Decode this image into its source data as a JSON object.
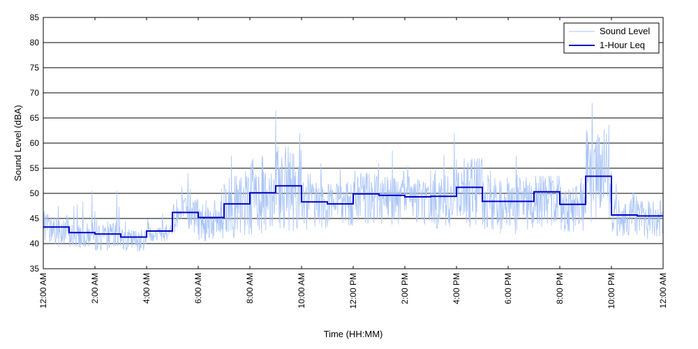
{
  "chart_data": {
    "type": "line",
    "xlabel": "Time (HH:MM)",
    "ylabel": "Sound Level (dBA)",
    "ylim": [
      35,
      85
    ],
    "xlim_hours": [
      0,
      24
    ],
    "y_ticks": [
      35,
      40,
      45,
      50,
      55,
      60,
      65,
      70,
      75,
      80,
      85
    ],
    "x_tick_hours": [
      0,
      2,
      4,
      6,
      8,
      10,
      12,
      14,
      16,
      18,
      20,
      22,
      24
    ],
    "x_tick_labels": [
      "12:00 AM",
      "2:00 AM",
      "4:00 AM",
      "6:00 AM",
      "8:00 AM",
      "10:00 AM",
      "12:00 PM",
      "2:00 PM",
      "4:00 PM",
      "6:00 PM",
      "8:00 PM",
      "10:00 PM",
      "12:00 AM"
    ],
    "grid": "horizontal",
    "legend_position": "top-right",
    "series": [
      {
        "name": "Sound Level",
        "color": "#a9c4f5",
        "style": "thin-line",
        "hourly_mean": [
          43.3,
          42.2,
          41.9,
          41.3,
          42.5,
          46.2,
          45.2,
          47.9,
          50.1,
          51.5,
          48.3,
          47.9,
          49.9,
          49.6,
          49.3,
          49.4,
          51.2,
          48.4,
          48.4,
          50.3,
          47.8,
          53.4,
          45.7,
          45.5
        ],
        "hourly_max": [
          47.5,
          50.5,
          50.5,
          44.5,
          46.0,
          54.0,
          51.0,
          57.5,
          57.5,
          66.5,
          56.0,
          55.0,
          56.0,
          58.5,
          55.5,
          62.0,
          57.0,
          54.5,
          57.5,
          53.5,
          53.0,
          68.0,
          52.0,
          48.5
        ],
        "hourly_min": [
          39.0,
          39.0,
          38.5,
          38.5,
          40.5,
          41.5,
          40.0,
          40.0,
          40.5,
          41.0,
          42.0,
          42.0,
          43.0,
          43.0,
          43.0,
          42.0,
          42.0,
          41.0,
          41.0,
          42.0,
          41.5,
          41.0,
          41.0,
          40.5
        ]
      },
      {
        "name": "1-Hour Leq",
        "color": "#0000c8",
        "style": "step",
        "values": [
          43.3,
          42.2,
          41.9,
          41.3,
          42.5,
          46.2,
          45.2,
          47.9,
          50.1,
          51.5,
          48.3,
          47.9,
          49.9,
          49.6,
          49.3,
          49.4,
          51.2,
          48.4,
          48.4,
          50.3,
          47.8,
          53.4,
          45.7,
          45.5
        ]
      }
    ]
  }
}
